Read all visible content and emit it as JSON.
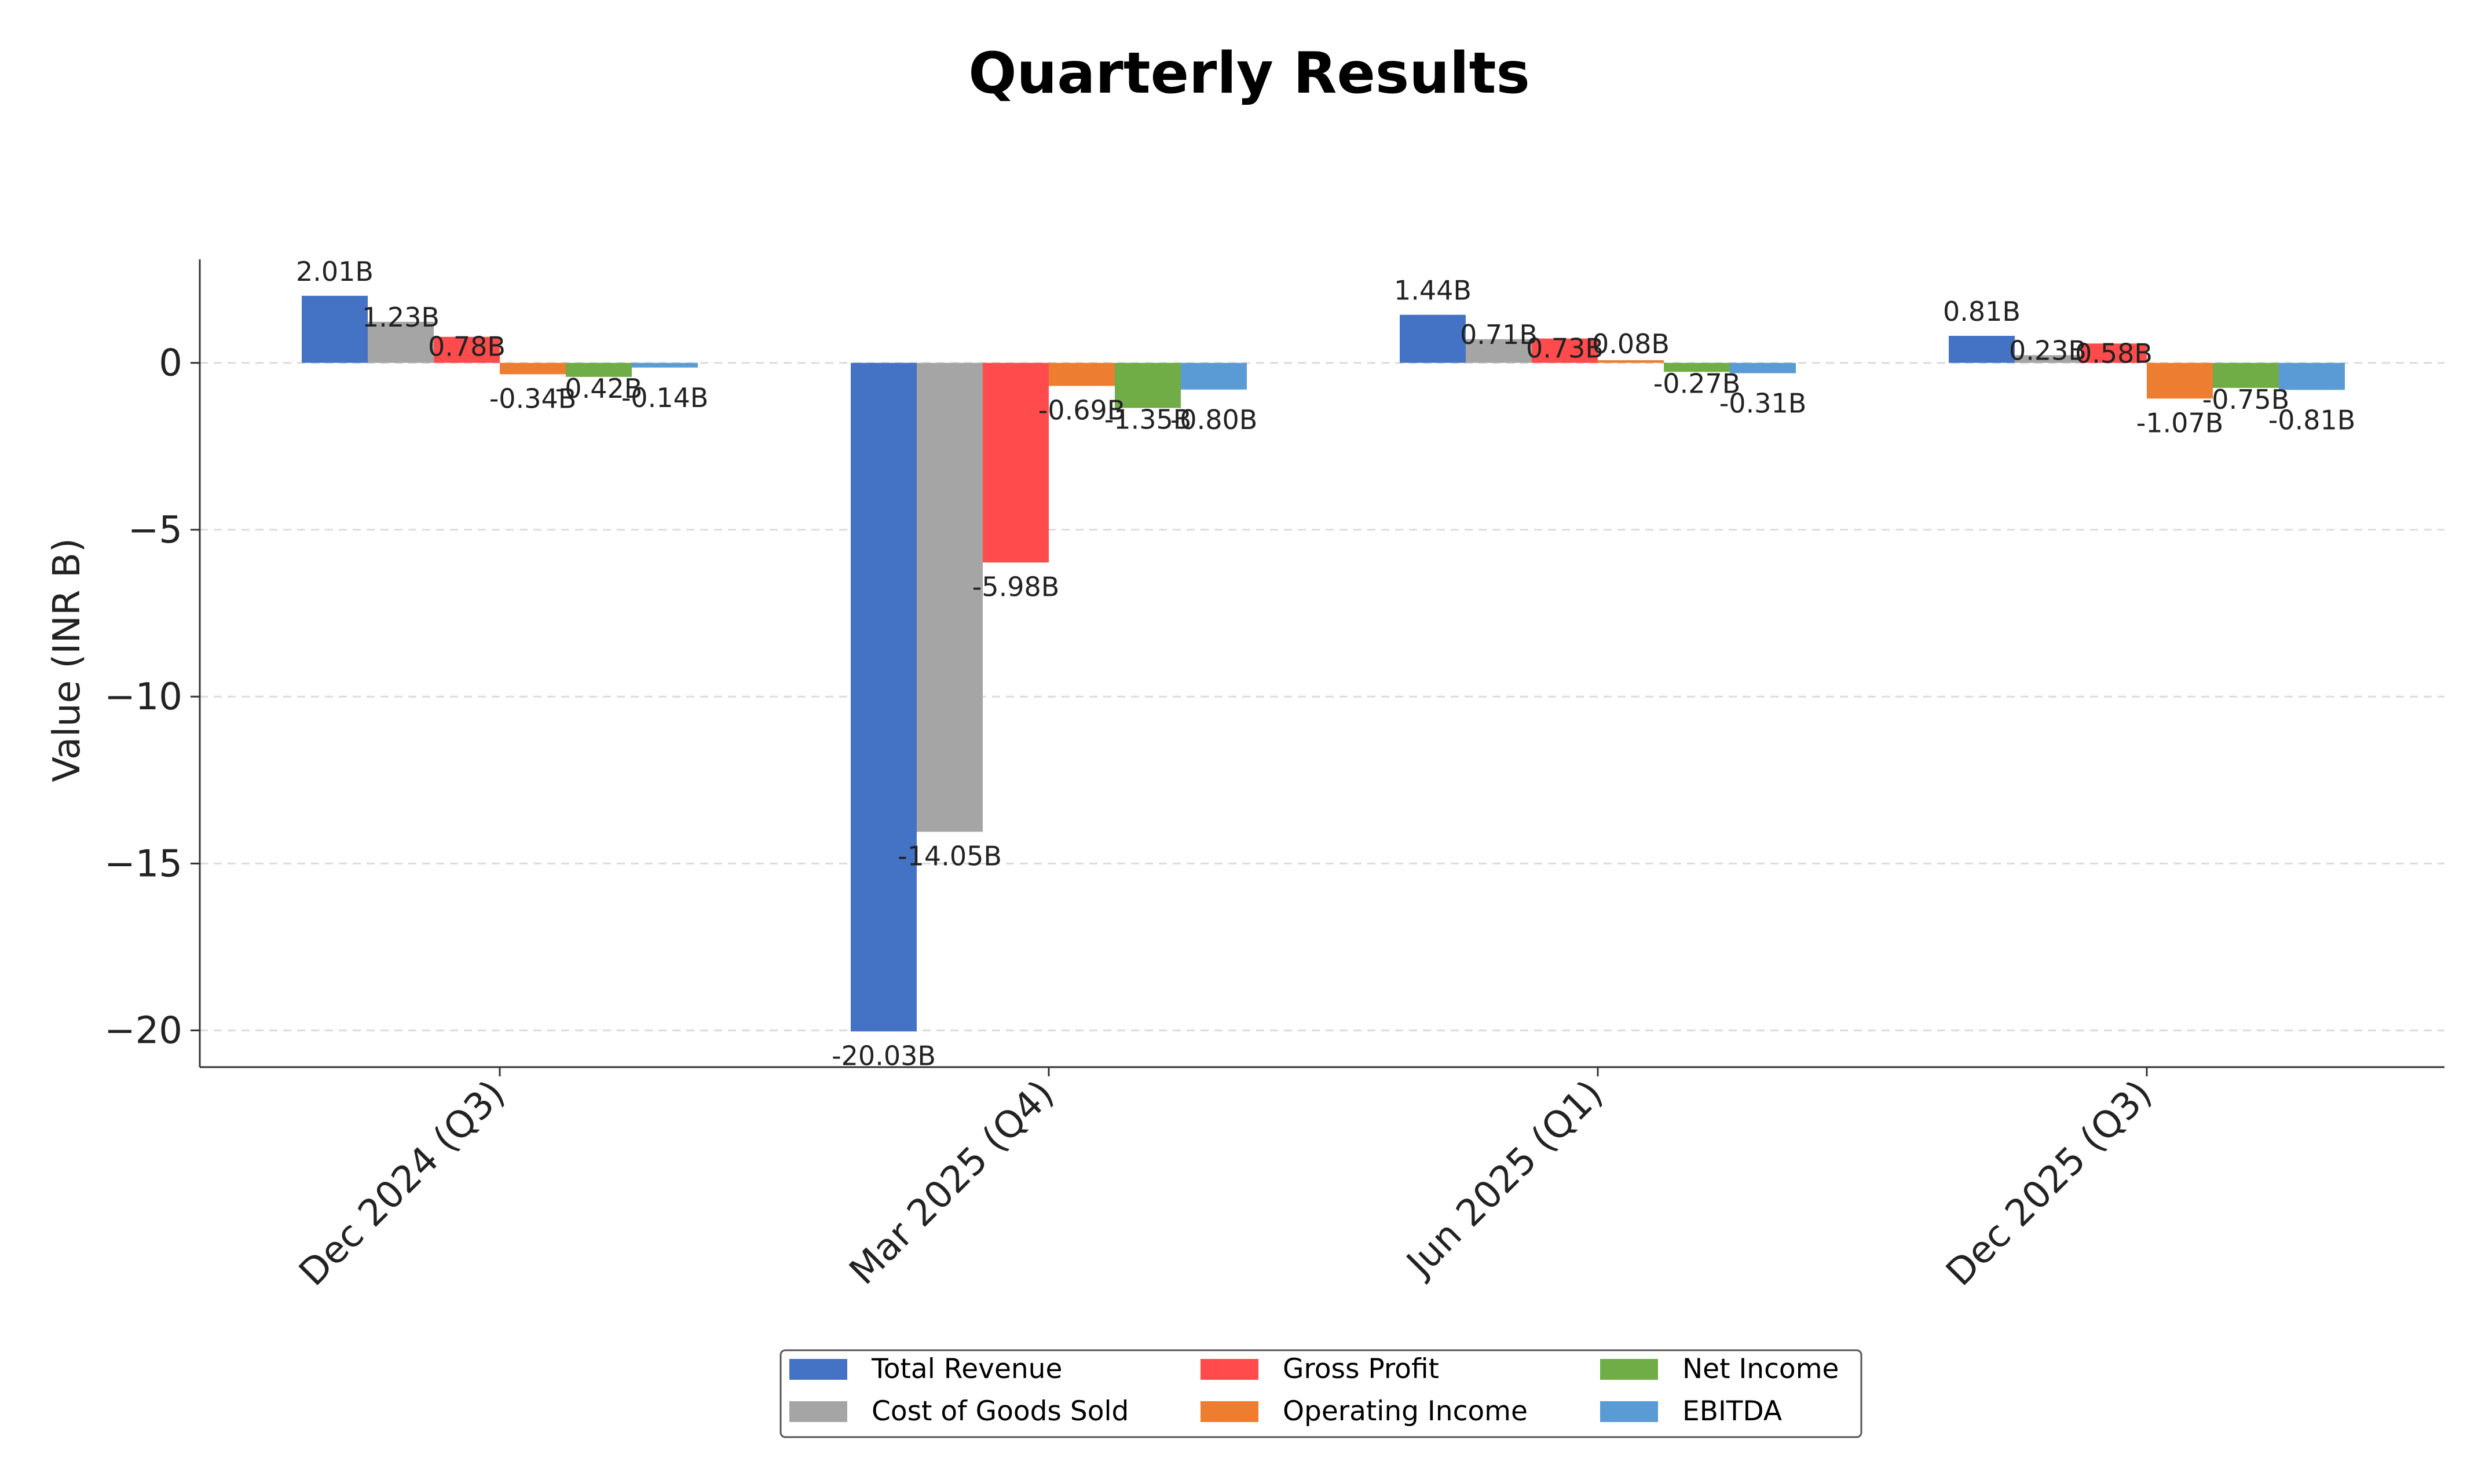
{
  "chart_data": {
    "type": "bar",
    "title": "Quarterly Results",
    "xlabel": "",
    "ylabel": "Value (INR B)",
    "categories": [
      "Dec 2024 (Q3)",
      "Mar 2025 (Q4)",
      "Jun 2025 (Q1)",
      "Dec 2025 (Q3)"
    ],
    "series": [
      {
        "name": "Total Revenue",
        "color": "#4472C4",
        "values": [
          2.01,
          -20.03,
          1.44,
          0.81
        ],
        "labels": [
          "2.01B",
          "-20.03B",
          "1.44B",
          "0.81B"
        ]
      },
      {
        "name": "Cost of Goods Sold",
        "color": "#A5A5A5",
        "values": [
          1.23,
          -14.05,
          0.71,
          0.23
        ],
        "labels": [
          "1.23B",
          "-14.05B",
          "0.71B",
          "0.23B"
        ]
      },
      {
        "name": "Gross Profit",
        "color": "#FF4B4B",
        "values": [
          0.78,
          -5.98,
          0.73,
          0.58
        ],
        "labels": [
          "0.78B",
          "-5.98B",
          "0.73B",
          "0.58B"
        ]
      },
      {
        "name": "Operating Income",
        "color": "#ED7D31",
        "values": [
          -0.34,
          -0.69,
          0.08,
          -1.07
        ],
        "labels": [
          "-0.34B",
          "-0.69B",
          "0.08B",
          "-1.07B"
        ]
      },
      {
        "name": "Net Income",
        "color": "#70AD47",
        "values": [
          -0.42,
          -1.35,
          -0.27,
          -0.75
        ],
        "labels": [
          "-0.42B",
          "-1.35B",
          "-0.27B",
          "-0.75B"
        ]
      },
      {
        "name": "EBITDA",
        "color": "#5B9BD5",
        "values": [
          -0.14,
          -0.8,
          -0.31,
          -0.81
        ],
        "labels": [
          "-0.14B",
          "-0.80B",
          "-0.31B",
          "-0.81B"
        ]
      }
    ],
    "ylim": [
      -21.1,
      3.1
    ],
    "yticks": [
      0,
      -5,
      -10,
      -15,
      -20
    ],
    "ytick_labels": [
      "0",
      "−5",
      "−10",
      "−15",
      "−20"
    ],
    "grid": true,
    "legend": "bottom-center"
  }
}
